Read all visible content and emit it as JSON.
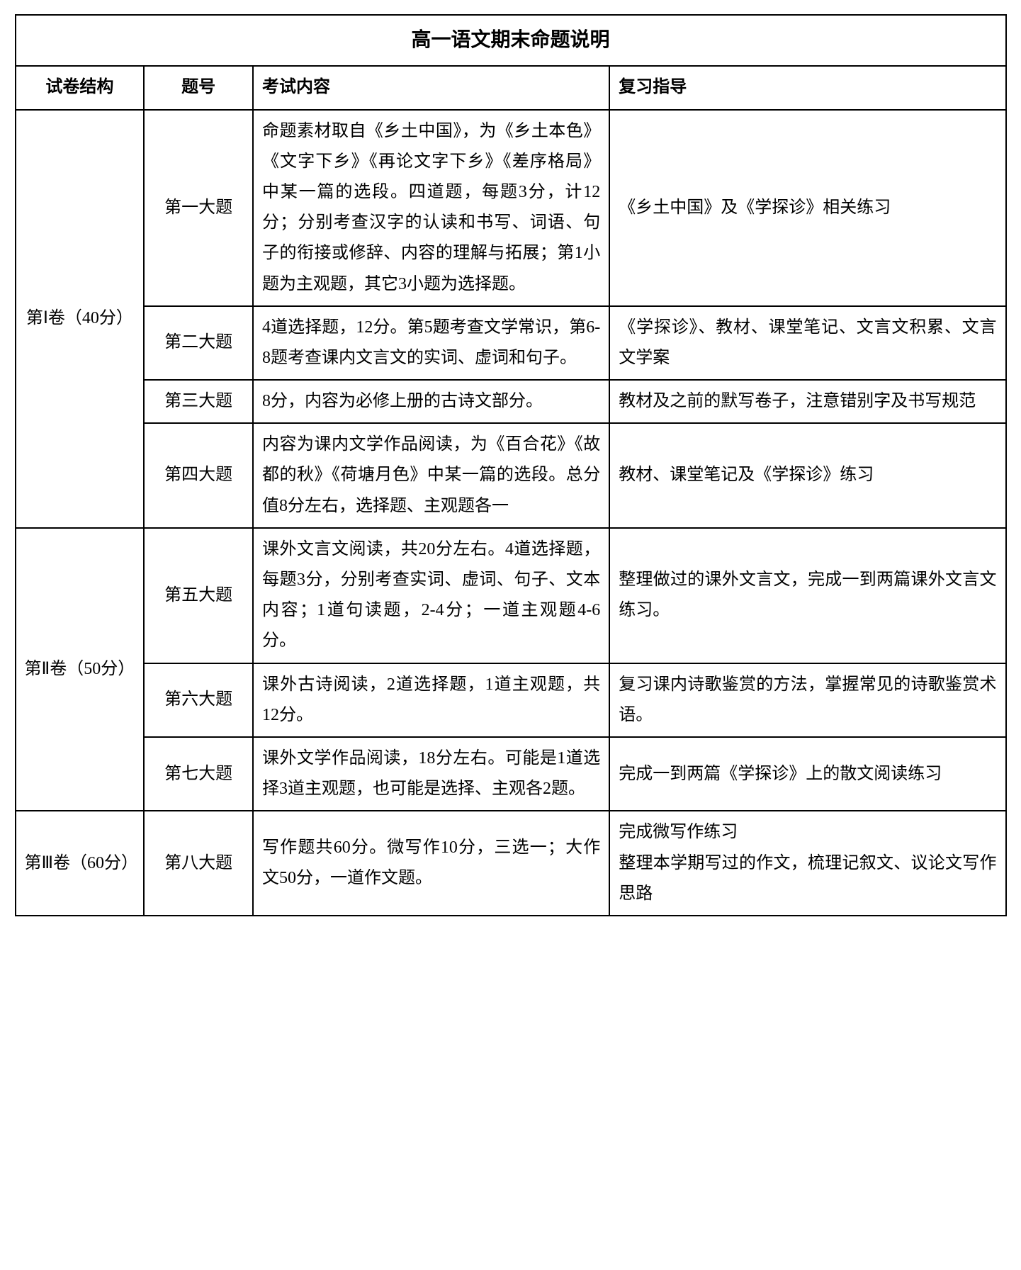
{
  "title": "高一语文期末命题说明",
  "headers": {
    "structure": "试卷结构",
    "number": "题号",
    "content": "考试内容",
    "guide": "复习指导"
  },
  "sections": [
    {
      "structure": "第Ⅰ卷（40分）",
      "rows": [
        {
          "number": "第一大题",
          "content": "命题素材取自《乡土中国》，为《乡土本色》《文字下乡》《再论文字下乡》《差序格局》中某一篇的选段。四道题，每题3分，计12分；分别考查汉字的认读和书写、词语、句子的衔接或修辞、内容的理解与拓展；第1小题为主观题，其它3小题为选择题。",
          "guide": "《乡土中国》及《学探诊》相关练习"
        },
        {
          "number": "第二大题",
          "content": "4道选择题，12分。第5题考查文学常识，第6-8题考查课内文言文的实词、虚词和句子。",
          "guide": "《学探诊》、教材、课堂笔记、文言文积累、文言文学案"
        },
        {
          "number": "第三大题",
          "content": "8分，内容为必修上册的古诗文部分。",
          "guide": "教材及之前的默写卷子，注意错别字及书写规范"
        },
        {
          "number": "第四大题",
          "content": "内容为课内文学作品阅读，为《百合花》《故都的秋》《荷塘月色》中某一篇的选段。总分值8分左右，选择题、主观题各一",
          "guide": "教材、课堂笔记及《学探诊》练习"
        }
      ]
    },
    {
      "structure": "第Ⅱ卷（50分）",
      "rows": [
        {
          "number": "第五大题",
          "content": "课外文言文阅读，共20分左右。4道选择题，每题3分，分别考查实词、虚词、句子、文本内容；1道句读题，2-4分；一道主观题4-6分。",
          "guide": "整理做过的课外文言文，完成一到两篇课外文言文练习。"
        },
        {
          "number": "第六大题",
          "content": "课外古诗阅读，2道选择题，1道主观题，共12分。",
          "guide": "复习课内诗歌鉴赏的方法，掌握常见的诗歌鉴赏术语。"
        },
        {
          "number": "第七大题",
          "content": "课外文学作品阅读，18分左右。可能是1道选择3道主观题，也可能是选择、主观各2题。",
          "guide": "完成一到两篇《学探诊》上的散文阅读练习"
        }
      ]
    },
    {
      "structure": "第Ⅲ卷（60分）",
      "rows": [
        {
          "number": "第八大题",
          "content": "写作题共60分。微写作10分，三选一；大作文50分，一道作文题。",
          "guide": "完成微写作练习\n整理本学期写过的作文，梳理记叙文、议论文写作思路"
        }
      ]
    }
  ]
}
